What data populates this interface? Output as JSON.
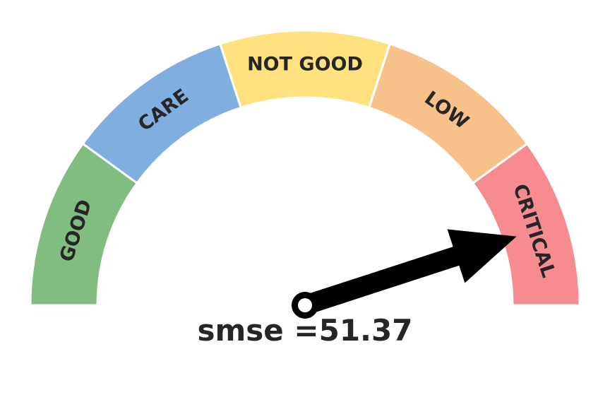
{
  "chart_data": {
    "type": "gauge",
    "segments": [
      {
        "label": "GOOD",
        "color": "#81bd81"
      },
      {
        "label": "CARE",
        "color": "#7faedf"
      },
      {
        "label": "NOT GOOD",
        "color": "#ffe27f"
      },
      {
        "label": "LOW",
        "color": "#f7c18a"
      },
      {
        "label": "CRITICAL",
        "color": "#f68c90"
      }
    ],
    "needle_segment": "CRITICAL",
    "readout": {
      "label": "smse =",
      "value": "51.37"
    }
  }
}
